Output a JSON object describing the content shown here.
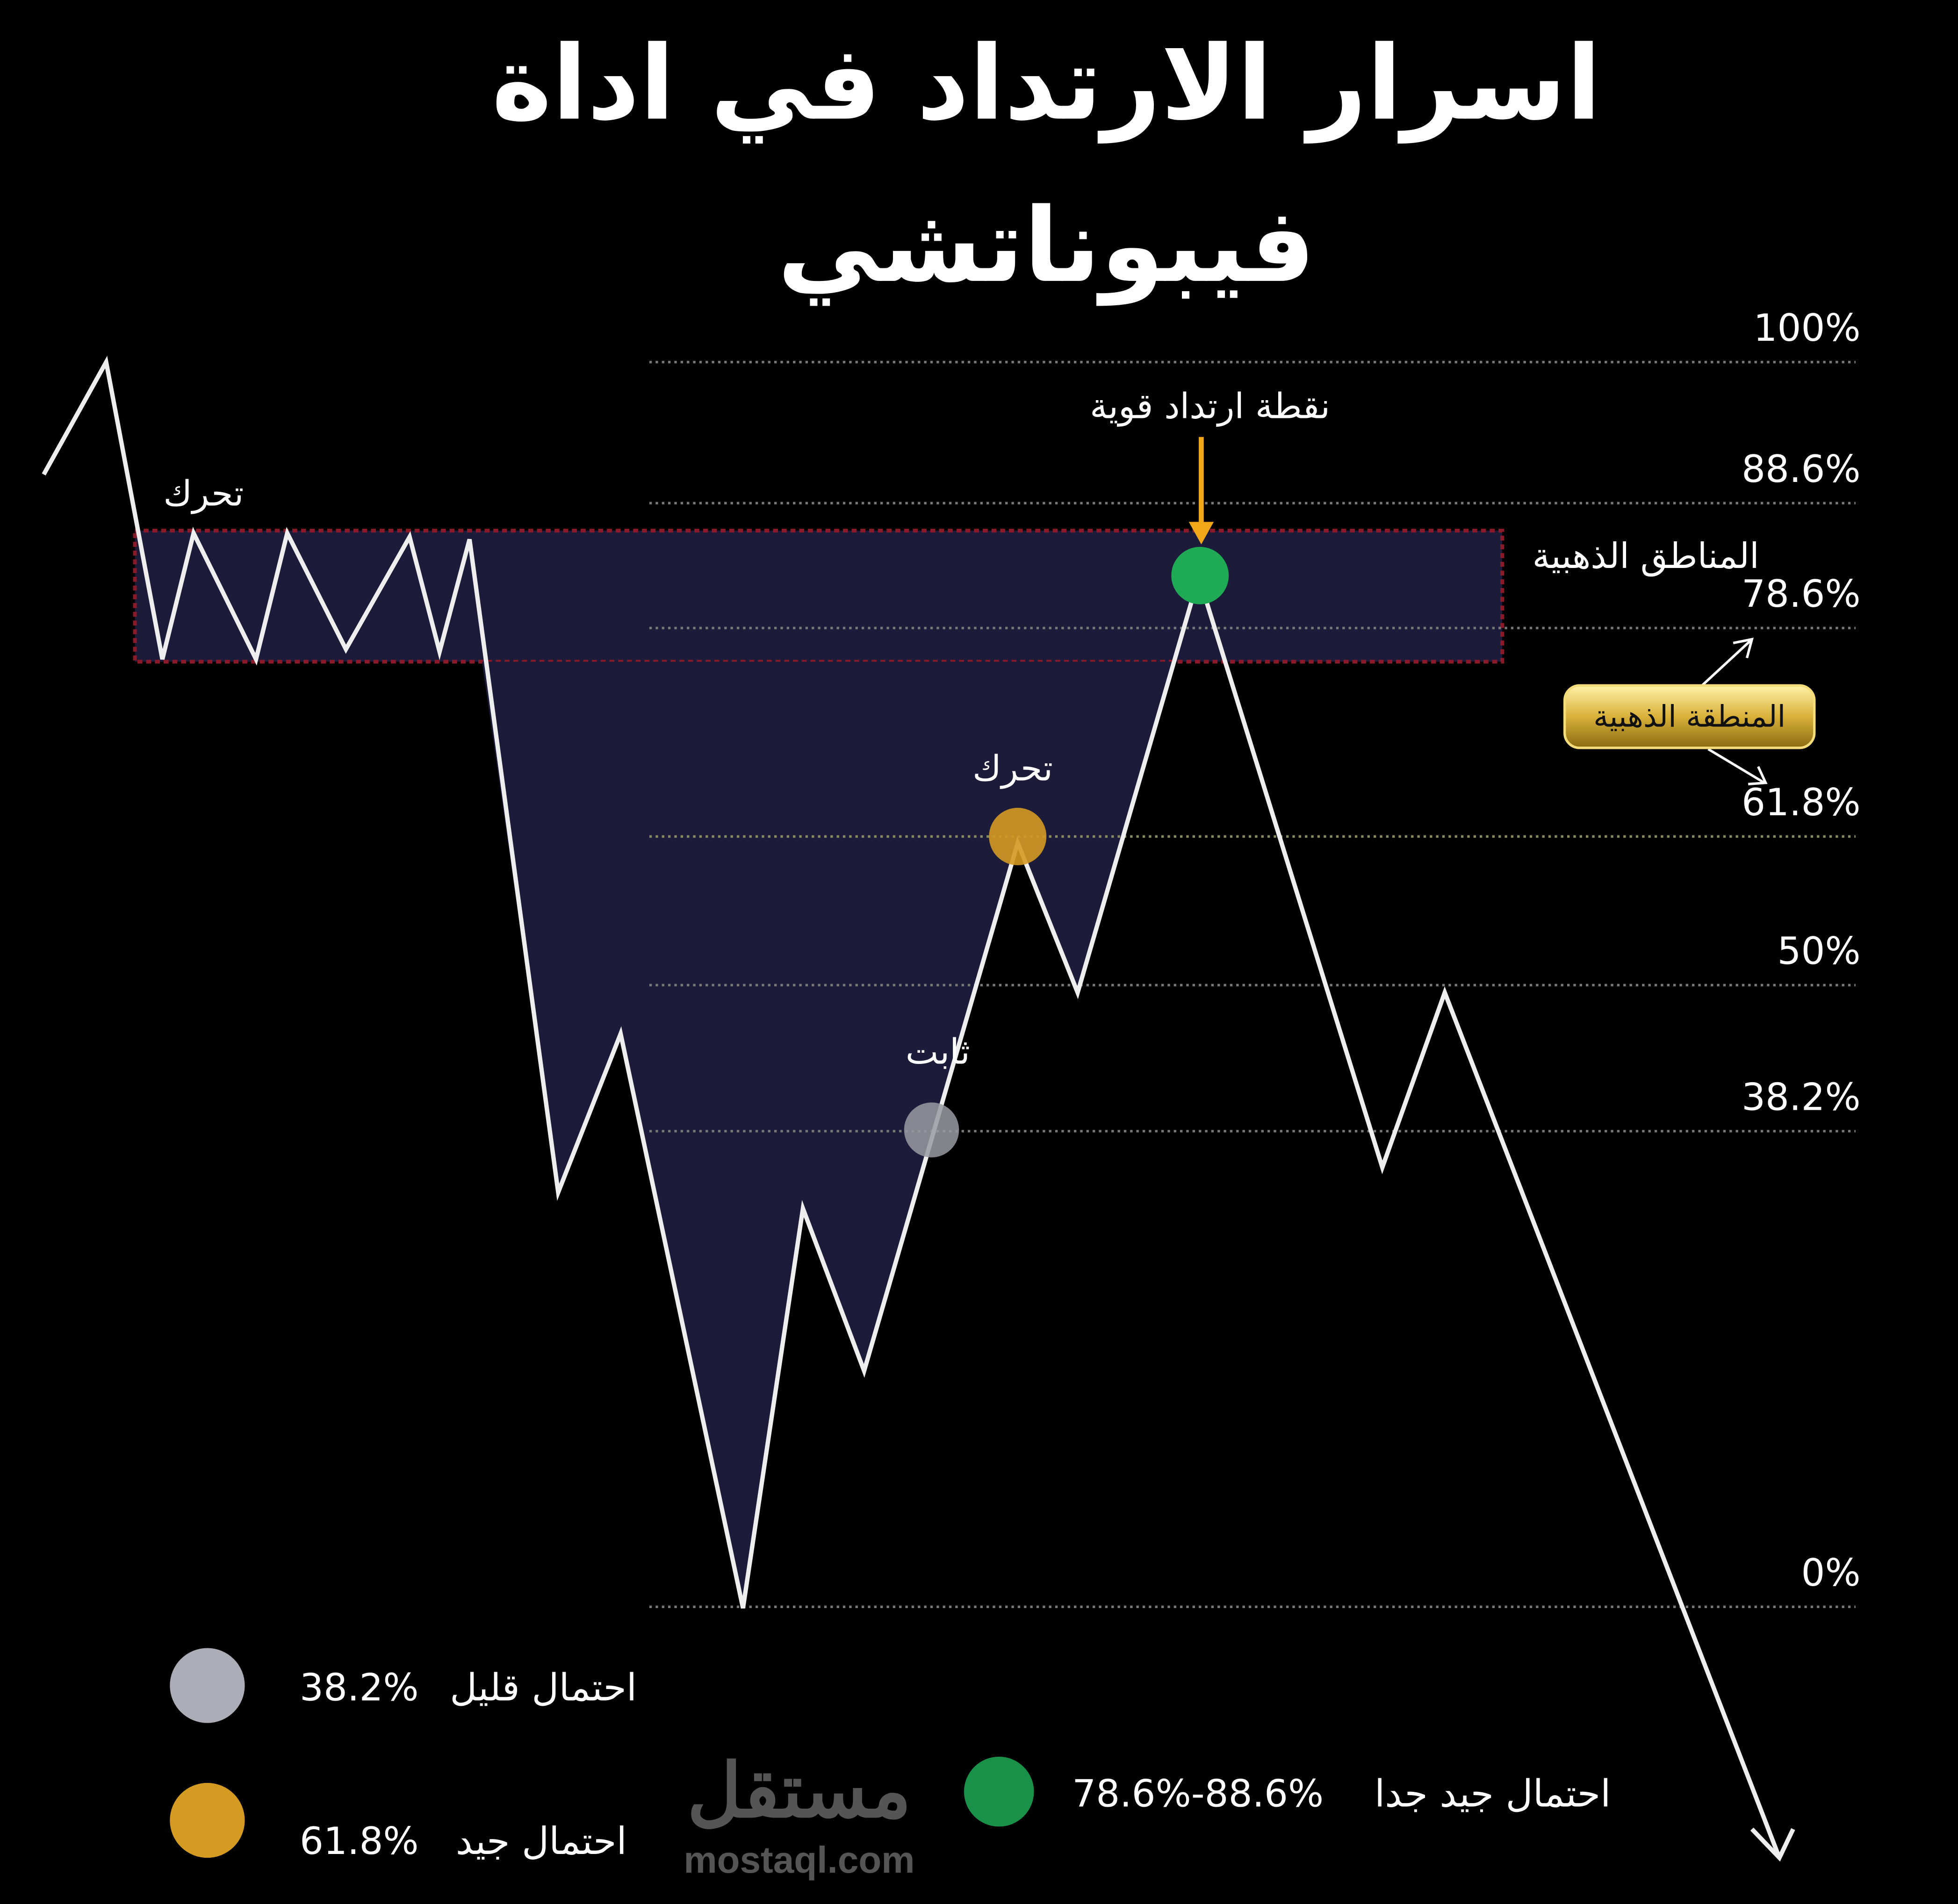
{
  "title": {
    "line1": "اسرار الارتداد في اداة",
    "line2": "فيبوناتشي"
  },
  "levels": [
    {
      "label": "100%",
      "value": 100
    },
    {
      "label": "88.6%",
      "value": 88.6
    },
    {
      "label": "78.6%",
      "value": 78.6
    },
    {
      "label": "61.8%",
      "value": 61.8
    },
    {
      "label": "50%",
      "value": 50
    },
    {
      "label": "38.2%",
      "value": 38.2
    },
    {
      "label": "0%",
      "value": 0
    }
  ],
  "annotations": {
    "move_left": "تحرك",
    "move_mid": "تحرك",
    "stable": "ثابت",
    "strong_point": "نقطة ارتداد قوية",
    "golden_areas": "المناطق الذهبية",
    "golden_zone_badge": "المنطقة الذهبية"
  },
  "legend": [
    {
      "text": "احتمال قليل",
      "pct": "38.2%",
      "color": "#adadb8"
    },
    {
      "text": "احتمال جيد",
      "pct": "61.8%",
      "color": "#d49a22"
    },
    {
      "text": "احتمال جيد جدا",
      "pct": "78.6%-88.6%",
      "color": "#1faa55"
    }
  ],
  "colors": {
    "zone_fill": "#1c1c3a",
    "zone_border": "#8a1a2a",
    "arrow": "#f0a818",
    "green": "#1faa55",
    "gold": "#d49a22",
    "grey": "#9a9aa2"
  },
  "watermark": {
    "arabic": "مستقل",
    "latin": "mostaql.com"
  }
}
